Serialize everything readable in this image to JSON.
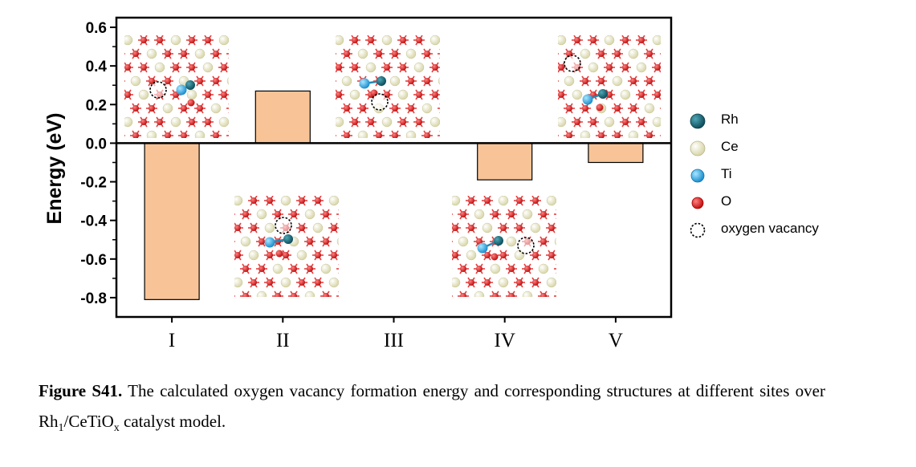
{
  "chart_data": {
    "type": "bar",
    "categories": [
      "I",
      "II",
      "III",
      "IV",
      "V"
    ],
    "values": [
      -0.81,
      0.27,
      null,
      -0.19,
      -0.1
    ],
    "xlabel": "",
    "ylabel": "Energy (eV)",
    "ylim": [
      -0.9,
      0.65
    ],
    "yticks": [
      "0.6",
      "0.4",
      "0.2",
      "0.0",
      "-0.2",
      "-0.4",
      "-0.6",
      "-0.8"
    ],
    "ytick_values": [
      0.6,
      0.4,
      0.2,
      0.0,
      -0.2,
      -0.4,
      -0.6,
      -0.8
    ],
    "bar_color": "#f8c497",
    "grid": false,
    "legend_placement": "right",
    "legend": [
      {
        "label": "Rh",
        "color": "#1b6a7a",
        "icon": "rh-atom-icon"
      },
      {
        "label": "Ce",
        "color": "#efefcf",
        "icon": "ce-atom-icon"
      },
      {
        "label": "Ti",
        "color": "#3ab0e6",
        "icon": "ti-atom-icon"
      },
      {
        "label": "O",
        "color": "#e02020",
        "icon": "o-atom-icon"
      },
      {
        "label": "oxygen vacancy",
        "color": "#000000",
        "icon": "vacancy-dashed-circle-icon"
      }
    ]
  },
  "caption": {
    "label": "Figure S41.",
    "text_before": " The calculated oxygen vacancy formation energy and corresponding structures at different sites over Rh",
    "sub1": "1",
    "text_mid": "/CeTiO",
    "sub2": "x",
    "text_after": " catalyst model."
  }
}
